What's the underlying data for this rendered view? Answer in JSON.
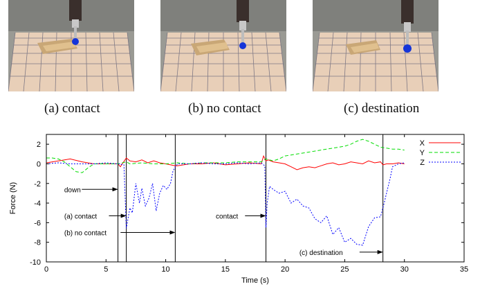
{
  "photos": [
    {
      "caption": "(a)  contact"
    },
    {
      "caption": "(b)  no contact"
    },
    {
      "caption": "(c)  destination"
    }
  ],
  "chart_data": {
    "type": "line",
    "xlabel": "Time (s)",
    "ylabel": "Force (N)",
    "xlim": [
      0,
      35
    ],
    "ylim": [
      -10,
      3
    ],
    "xticks": [
      0,
      5,
      10,
      15,
      20,
      25,
      30,
      35
    ],
    "yticks": [
      2,
      0,
      -2,
      -4,
      -6,
      -8,
      -10
    ],
    "grid": false,
    "legend_position": "top-right",
    "vlines": [
      6.0,
      6.7,
      10.8,
      18.4,
      28.2
    ],
    "annotations": [
      {
        "text": "down",
        "x_from": 1.5,
        "x_to": 6.0,
        "y": -2.6
      },
      {
        "text": "(a) contact",
        "x_from": 1.5,
        "x_to": 6.7,
        "y": -5.3
      },
      {
        "text": "(b) no contact",
        "x_from": 1.5,
        "x_to": 10.8,
        "y": -7.0
      },
      {
        "text": "contact",
        "x_from": 14.2,
        "x_to": 18.4,
        "y": -5.3
      },
      {
        "text": "(c) destination",
        "x_from": 21.2,
        "x_to": 28.2,
        "y": -9.0
      }
    ],
    "series": [
      {
        "name": "X",
        "color": "#ff0000",
        "dash": "solid",
        "x": [
          0,
          1,
          2,
          3,
          4,
          5,
          6,
          6.2,
          6.7,
          7,
          7.5,
          8,
          8.5,
          9,
          9.5,
          10,
          10.8,
          11,
          12,
          13,
          14,
          15,
          16,
          17,
          18,
          18.2,
          18.4,
          18.6,
          19,
          19.5,
          20,
          20.5,
          21,
          21.5,
          22,
          22.5,
          23,
          23.5,
          24,
          24.5,
          25,
          25.5,
          26,
          26.5,
          27,
          27.5,
          28,
          28.2,
          28.5,
          29,
          29.5,
          30
        ],
        "y": [
          0.1,
          0.3,
          0.5,
          0.2,
          0.0,
          0.0,
          0.0,
          -0.3,
          0.6,
          0.3,
          0.2,
          0.4,
          0.1,
          0.3,
          0.1,
          0.0,
          -0.2,
          -0.2,
          0.0,
          0.0,
          0.1,
          -0.1,
          0.0,
          0.1,
          0.0,
          0.8,
          0.3,
          0.4,
          0.2,
          0.1,
          0.0,
          -0.3,
          -0.6,
          -0.4,
          -0.3,
          -0.4,
          -0.2,
          0.0,
          0.1,
          -0.1,
          0.0,
          0.2,
          0.1,
          0.0,
          0.3,
          0.1,
          0.2,
          -0.1,
          0.0,
          0.0,
          0.1,
          0.0
        ]
      },
      {
        "name": "Y",
        "color": "#00dd00",
        "dash": "5,3",
        "x": [
          0,
          0.5,
          1,
          1.5,
          2,
          2.5,
          3,
          3.5,
          4,
          5,
          6,
          6.7,
          7,
          8,
          9,
          10,
          11,
          12,
          13,
          14,
          15,
          16,
          17,
          18,
          18.4,
          19,
          19.5,
          20,
          21,
          22,
          23,
          24,
          25,
          25.5,
          26,
          26.5,
          27,
          27.5,
          28,
          28.5,
          29,
          29.5,
          30
        ],
        "y": [
          0.6,
          0.6,
          0.5,
          0.2,
          -0.3,
          -0.8,
          -0.9,
          -0.4,
          0.0,
          0.0,
          0.0,
          0.2,
          0.0,
          0.1,
          0.0,
          0.0,
          0.1,
          0.0,
          0.1,
          0.1,
          0.1,
          0.2,
          0.2,
          0.2,
          0.5,
          0.3,
          0.5,
          0.8,
          1.0,
          1.2,
          1.4,
          1.6,
          1.8,
          2.0,
          2.3,
          2.5,
          2.3,
          2.0,
          1.7,
          1.6,
          1.5,
          1.5,
          1.4
        ]
      },
      {
        "name": "Z",
        "color": "#0000ff",
        "dash": "2,2",
        "x": [
          0,
          1,
          2,
          3,
          4,
          5,
          6,
          6.5,
          6.7,
          7,
          7.2,
          7.5,
          7.8,
          8,
          8.3,
          8.6,
          8.9,
          9.2,
          9.5,
          9.8,
          10.1,
          10.4,
          10.6,
          10.8,
          11,
          12,
          13,
          14,
          15,
          16,
          17,
          18,
          18.3,
          18.4,
          18.5,
          18.7,
          19,
          19.5,
          20,
          20.5,
          21,
          21.5,
          22,
          22.5,
          23,
          23.5,
          24,
          24.5,
          25,
          25.5,
          26,
          26.5,
          27,
          27.5,
          28,
          28.3,
          28.8,
          29,
          29.5,
          30
        ],
        "y": [
          0.0,
          0.1,
          0.0,
          0.0,
          0.0,
          0.1,
          0.0,
          -0.1,
          -6.6,
          -4.5,
          -5.0,
          -2.0,
          -4.0,
          -2.5,
          -4.3,
          -3.5,
          -2.0,
          -4.8,
          -3.0,
          -2.2,
          -2.6,
          -2.0,
          -0.8,
          -0.3,
          0.0,
          0.0,
          0.1,
          0.0,
          0.0,
          0.1,
          0.0,
          0.1,
          -0.2,
          -6.5,
          -4.0,
          -2.3,
          -2.6,
          -3.0,
          -2.8,
          -4.0,
          -3.6,
          -4.3,
          -4.5,
          -5.6,
          -6.0,
          -5.3,
          -7.2,
          -6.5,
          -8.0,
          -7.6,
          -8.2,
          -8.3,
          -6.4,
          -5.5,
          -5.4,
          -4.0,
          -1.5,
          -0.3,
          0.0,
          0.1
        ]
      }
    ]
  }
}
